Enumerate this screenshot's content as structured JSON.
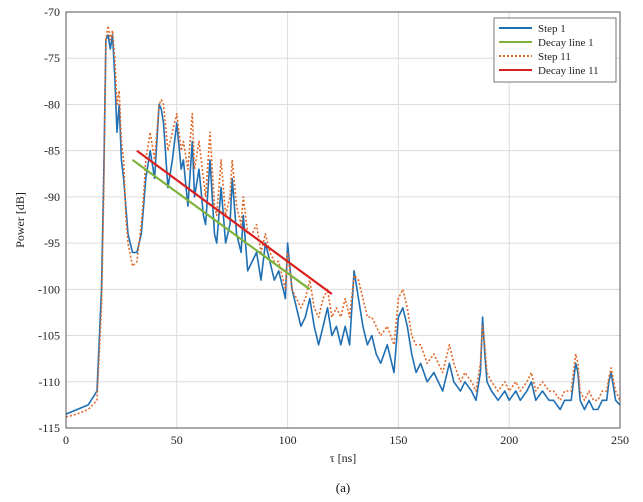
{
  "caption": "(a)",
  "chart_data": {
    "type": "line",
    "xlabel": "τ [ns]",
    "ylabel": "Power [dB]",
    "xlim": [
      0,
      250
    ],
    "ylim": [
      -115,
      -70
    ],
    "xticks": [
      0,
      50,
      100,
      150,
      200,
      250
    ],
    "yticks": [
      -70,
      -75,
      -80,
      -85,
      -90,
      -95,
      -100,
      -105,
      -110,
      -115
    ],
    "grid": true,
    "legend_position": "top-right",
    "series": [
      {
        "name": "Step 1",
        "color": "#1f6fb2",
        "style": "solid",
        "x": [
          0,
          5,
          10,
          14,
          16,
          17,
          18,
          19,
          20,
          21,
          22,
          23,
          24,
          25,
          26,
          27,
          28,
          30,
          32,
          34,
          35,
          36,
          38,
          40,
          42,
          43,
          44,
          46,
          48,
          50,
          52,
          53,
          55,
          57,
          58,
          60,
          62,
          63,
          65,
          67,
          68,
          70,
          72,
          74,
          75,
          77,
          79,
          80,
          82,
          84,
          86,
          88,
          90,
          92,
          94,
          96,
          98,
          99,
          100,
          102,
          104,
          106,
          108,
          110,
          112,
          114,
          116,
          118,
          120,
          122,
          124,
          126,
          128,
          130,
          132,
          134,
          136,
          138,
          140,
          142,
          145,
          148,
          150,
          152,
          154,
          156,
          158,
          160,
          163,
          166,
          168,
          170,
          173,
          175,
          178,
          180,
          183,
          185,
          187,
          188,
          189,
          190,
          192,
          195,
          198,
          200,
          203,
          205,
          208,
          210,
          212,
          215,
          218,
          220,
          223,
          225,
          228,
          230,
          231,
          232,
          234,
          236,
          238,
          240,
          242,
          244,
          245,
          246,
          248,
          250
        ],
        "y": [
          -113.5,
          -113,
          -112.5,
          -111,
          -100,
          -88,
          -73,
          -72.5,
          -74,
          -72.5,
          -77,
          -83,
          -80,
          -86,
          -88,
          -91,
          -94,
          -96,
          -96,
          -94,
          -91,
          -88,
          -85,
          -88,
          -80,
          -80.5,
          -82,
          -89,
          -86,
          -82,
          -87,
          -86,
          -91,
          -84,
          -90,
          -87,
          -92,
          -93,
          -86,
          -94,
          -95,
          -89,
          -95,
          -93,
          -88,
          -94,
          -96,
          -92,
          -98,
          -97,
          -96,
          -99,
          -95,
          -97,
          -99,
          -98,
          -100,
          -101,
          -95,
          -100,
          -102,
          -104,
          -103,
          -101,
          -104,
          -106,
          -104,
          -102,
          -105,
          -104,
          -106,
          -104,
          -106,
          -98,
          -101,
          -104,
          -106,
          -105,
          -107,
          -108,
          -106,
          -109,
          -103,
          -102,
          -104,
          -107,
          -109,
          -108,
          -110,
          -109,
          -110,
          -111,
          -108,
          -110,
          -111,
          -110,
          -111,
          -112,
          -109,
          -103,
          -107,
          -110,
          -111,
          -112,
          -111,
          -112,
          -111,
          -112,
          -111,
          -110,
          -112,
          -111,
          -112,
          -112,
          -113,
          -112,
          -112,
          -108,
          -109,
          -112,
          -113,
          -112,
          -113,
          -113,
          -112,
          -112,
          -110,
          -109,
          -112,
          -112.5
        ]
      },
      {
        "name": "Decay line 1",
        "color": "#7db33a",
        "style": "solid",
        "x": [
          30,
          110
        ],
        "y": [
          -86,
          -100
        ]
      },
      {
        "name": "Step 11",
        "color": "#e06a2a",
        "style": "dotted",
        "x": [
          0,
          5,
          10,
          14,
          16,
          17,
          18,
          19,
          20,
          21,
          22,
          23,
          24,
          25,
          26,
          27,
          28,
          30,
          32,
          34,
          35,
          36,
          38,
          40,
          42,
          43,
          44,
          46,
          48,
          50,
          52,
          53,
          55,
          57,
          58,
          60,
          62,
          63,
          65,
          67,
          68,
          70,
          72,
          74,
          75,
          77,
          79,
          80,
          82,
          84,
          86,
          88,
          90,
          92,
          94,
          96,
          98,
          99,
          100,
          102,
          104,
          106,
          108,
          110,
          112,
          114,
          116,
          118,
          120,
          122,
          124,
          126,
          128,
          130,
          132,
          134,
          136,
          138,
          140,
          142,
          145,
          148,
          150,
          152,
          154,
          156,
          158,
          160,
          163,
          166,
          168,
          170,
          173,
          175,
          178,
          180,
          183,
          185,
          187,
          188,
          189,
          190,
          192,
          195,
          198,
          200,
          203,
          205,
          208,
          210,
          212,
          215,
          218,
          220,
          223,
          225,
          228,
          230,
          231,
          232,
          234,
          236,
          238,
          240,
          242,
          244,
          245,
          246,
          248,
          250
        ],
        "y": [
          -113.8,
          -113.5,
          -113,
          -112,
          -102,
          -90,
          -73,
          -71.5,
          -73,
          -72,
          -75,
          -80,
          -78.5,
          -84,
          -86,
          -92,
          -95,
          -97.5,
          -97,
          -93,
          -90,
          -86,
          -83,
          -86,
          -80,
          -79.5,
          -80,
          -85,
          -83,
          -81,
          -85,
          -84,
          -87,
          -81,
          -87,
          -84,
          -88,
          -90,
          -83,
          -91,
          -92,
          -86,
          -92,
          -90,
          -86,
          -91,
          -93,
          -90,
          -94,
          -94,
          -93,
          -96,
          -94,
          -96,
          -97,
          -97,
          -99,
          -100,
          -96,
          -100,
          -101,
          -102,
          -101,
          -99,
          -102,
          -103,
          -101,
          -100,
          -103,
          -102,
          -103,
          -101,
          -103,
          -98.5,
          -99,
          -101,
          -103,
          -103,
          -104,
          -105,
          -104,
          -106,
          -101,
          -100,
          -102,
          -105,
          -106,
          -106,
          -108,
          -107,
          -108,
          -109,
          -106,
          -108,
          -110,
          -109,
          -110,
          -111,
          -108,
          -104,
          -106,
          -109,
          -110,
          -111,
          -110,
          -111,
          -110,
          -111,
          -110,
          -109,
          -111,
          -110,
          -111,
          -111,
          -112,
          -111,
          -111,
          -107,
          -108,
          -111,
          -112,
          -111,
          -112,
          -112,
          -111,
          -111,
          -109.5,
          -108.5,
          -111,
          -112
        ]
      },
      {
        "name": "Decay line 11",
        "color": "#d9201f",
        "style": "solid",
        "x": [
          32,
          120
        ],
        "y": [
          -85,
          -100.5
        ]
      }
    ]
  }
}
